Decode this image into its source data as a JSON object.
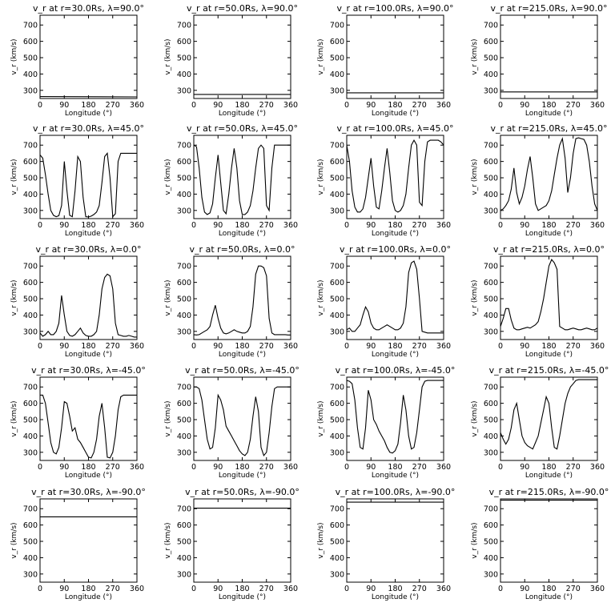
{
  "xlabel": "Longitude (°)",
  "ylabel": "v_r (km/s)",
  "chart_data": [
    {
      "type": "line",
      "title": "v_r at r=30.0Rs, λ=90.0°",
      "xlim": [
        0,
        360
      ],
      "ylim": [
        250,
        760
      ],
      "x": [
        0,
        360
      ],
      "y": [
        262,
        260
      ]
    },
    {
      "type": "line",
      "title": "v_r at r=50.0Rs, λ=90.0°",
      "xlim": [
        0,
        360
      ],
      "ylim": [
        250,
        760
      ],
      "x": [
        0,
        360
      ],
      "y": [
        275,
        275
      ]
    },
    {
      "type": "line",
      "title": "v_r at r=100.0Rs, λ=90.0°",
      "xlim": [
        0,
        360
      ],
      "ylim": [
        250,
        760
      ],
      "x": [
        0,
        360
      ],
      "y": [
        285,
        285
      ]
    },
    {
      "type": "line",
      "title": "v_r at r=215.0Rs, λ=90.0°",
      "xlim": [
        0,
        360
      ],
      "ylim": [
        250,
        760
      ],
      "x": [
        0,
        360
      ],
      "y": [
        290,
        290
      ]
    },
    {
      "type": "line",
      "title": "v_r at r=30.0Rs, λ=45.0°",
      "xlim": [
        0,
        360
      ],
      "ylim": [
        250,
        760
      ],
      "x": [
        0,
        10,
        20,
        30,
        40,
        50,
        60,
        70,
        80,
        90,
        100,
        110,
        120,
        130,
        140,
        150,
        160,
        170,
        180,
        190,
        200,
        210,
        220,
        230,
        240,
        250,
        260,
        270,
        280,
        290,
        300,
        310,
        320,
        330,
        340,
        350,
        360
      ],
      "y": [
        640,
        620,
        520,
        400,
        300,
        270,
        262,
        268,
        330,
        600,
        420,
        270,
        262,
        420,
        630,
        600,
        380,
        262,
        260,
        265,
        275,
        290,
        330,
        470,
        630,
        650,
        500,
        262,
        280,
        600,
        650,
        650,
        650,
        650,
        650,
        650,
        650
      ]
    },
    {
      "type": "line",
      "title": "v_r at r=50.0Rs, λ=45.0°",
      "xlim": [
        0,
        360
      ],
      "ylim": [
        250,
        760
      ],
      "x": [
        0,
        10,
        20,
        30,
        40,
        50,
        60,
        70,
        80,
        90,
        100,
        110,
        120,
        130,
        140,
        150,
        160,
        170,
        180,
        190,
        200,
        210,
        220,
        230,
        240,
        250,
        260,
        270,
        280,
        290,
        300,
        310,
        320,
        330,
        340,
        350,
        360
      ],
      "y": [
        700,
        690,
        560,
        380,
        290,
        275,
        285,
        340,
        500,
        640,
        470,
        300,
        280,
        400,
        560,
        680,
        560,
        360,
        275,
        275,
        290,
        330,
        420,
        560,
        680,
        700,
        680,
        330,
        300,
        560,
        700,
        700,
        700,
        700,
        700,
        700,
        700
      ]
    },
    {
      "type": "line",
      "title": "v_r at r=100.0Rs, λ=45.0°",
      "xlim": [
        0,
        360
      ],
      "ylim": [
        250,
        760
      ],
      "x": [
        0,
        10,
        20,
        30,
        40,
        50,
        60,
        70,
        80,
        90,
        100,
        110,
        120,
        130,
        140,
        150,
        160,
        170,
        180,
        190,
        200,
        210,
        220,
        230,
        240,
        250,
        260,
        270,
        280,
        290,
        300,
        310,
        320,
        330,
        340,
        350,
        360
      ],
      "y": [
        700,
        600,
        420,
        320,
        290,
        290,
        310,
        380,
        500,
        620,
        450,
        320,
        310,
        420,
        560,
        680,
        530,
        360,
        300,
        290,
        300,
        330,
        400,
        560,
        700,
        730,
        700,
        350,
        330,
        600,
        720,
        730,
        730,
        730,
        730,
        720,
        700
      ]
    },
    {
      "type": "line",
      "title": "v_r at r=215.0Rs, λ=45.0°",
      "xlim": [
        0,
        360
      ],
      "ylim": [
        250,
        760
      ],
      "x": [
        0,
        10,
        20,
        30,
        40,
        50,
        60,
        70,
        80,
        90,
        100,
        110,
        120,
        130,
        140,
        150,
        160,
        170,
        180,
        190,
        200,
        210,
        220,
        230,
        240,
        250,
        260,
        270,
        280,
        290,
        300,
        310,
        320,
        330,
        340,
        350,
        360
      ],
      "y": [
        300,
        310,
        330,
        360,
        430,
        560,
        410,
        340,
        380,
        450,
        550,
        630,
        500,
        340,
        300,
        310,
        320,
        330,
        360,
        420,
        520,
        620,
        700,
        740,
        620,
        410,
        500,
        650,
        740,
        745,
        740,
        735,
        700,
        600,
        450,
        340,
        300
      ]
    },
    {
      "type": "line",
      "title": "v_r at r=30.0Rs, λ=0.0°",
      "xlim": [
        0,
        360
      ],
      "ylim": [
        250,
        760
      ],
      "x": [
        0,
        10,
        20,
        30,
        40,
        50,
        60,
        70,
        80,
        90,
        100,
        110,
        120,
        130,
        140,
        150,
        160,
        170,
        180,
        190,
        200,
        210,
        220,
        230,
        240,
        250,
        260,
        270,
        280,
        290,
        300,
        310,
        320,
        330,
        340,
        350,
        360
      ],
      "y": [
        290,
        270,
        280,
        300,
        280,
        280,
        300,
        350,
        520,
        400,
        300,
        275,
        270,
        280,
        300,
        320,
        290,
        275,
        270,
        270,
        280,
        300,
        400,
        560,
        630,
        650,
        640,
        560,
        350,
        280,
        275,
        270,
        270,
        275,
        270,
        265,
        265
      ]
    },
    {
      "type": "line",
      "title": "v_r at r=50.0Rs, λ=0.0°",
      "xlim": [
        0,
        360
      ],
      "ylim": [
        250,
        760
      ],
      "x": [
        0,
        10,
        20,
        30,
        40,
        50,
        60,
        70,
        80,
        90,
        100,
        110,
        120,
        130,
        140,
        150,
        160,
        170,
        180,
        190,
        200,
        210,
        220,
        230,
        240,
        250,
        260,
        270,
        280,
        290,
        300,
        310,
        320,
        330,
        340,
        350,
        360
      ],
      "y": [
        280,
        278,
        280,
        290,
        300,
        310,
        330,
        400,
        460,
        380,
        320,
        290,
        285,
        290,
        300,
        310,
        300,
        295,
        290,
        290,
        300,
        330,
        450,
        650,
        700,
        700,
        690,
        640,
        380,
        290,
        280,
        280,
        280,
        280,
        280,
        278,
        278
      ]
    },
    {
      "type": "line",
      "title": "v_r at r=100.0Rs, λ=0.0°",
      "xlim": [
        0,
        360
      ],
      "ylim": [
        250,
        760
      ],
      "x": [
        0,
        10,
        20,
        30,
        40,
        50,
        60,
        70,
        80,
        90,
        100,
        110,
        120,
        130,
        140,
        150,
        160,
        170,
        180,
        190,
        200,
        210,
        220,
        230,
        240,
        250,
        260,
        270,
        280,
        290,
        300,
        310,
        320,
        330,
        340,
        350,
        360
      ],
      "y": [
        310,
        320,
        300,
        300,
        320,
        340,
        400,
        450,
        420,
        350,
        320,
        310,
        310,
        320,
        330,
        340,
        330,
        320,
        310,
        310,
        320,
        350,
        450,
        660,
        720,
        730,
        680,
        500,
        300,
        295,
        290,
        290,
        290,
        290,
        290,
        290,
        290
      ]
    },
    {
      "type": "line",
      "title": "v_r at r=215.0Rs, λ=0.0°",
      "xlim": [
        0,
        360
      ],
      "ylim": [
        250,
        760
      ],
      "x": [
        0,
        10,
        20,
        30,
        40,
        50,
        60,
        70,
        80,
        90,
        100,
        110,
        120,
        130,
        140,
        150,
        160,
        170,
        180,
        190,
        200,
        210,
        220,
        230,
        240,
        250,
        260,
        270,
        280,
        290,
        300,
        310,
        320,
        330,
        340,
        350,
        360
      ],
      "y": [
        330,
        380,
        440,
        440,
        370,
        320,
        310,
        310,
        315,
        320,
        325,
        320,
        330,
        340,
        360,
        420,
        500,
        600,
        700,
        740,
        720,
        680,
        330,
        320,
        310,
        310,
        315,
        320,
        315,
        310,
        310,
        315,
        320,
        315,
        310,
        310,
        320
      ]
    },
    {
      "type": "line",
      "title": "v_r at r=30.0Rs, λ=-45.0°",
      "xlim": [
        0,
        360
      ],
      "ylim": [
        250,
        760
      ],
      "x": [
        0,
        10,
        20,
        30,
        40,
        50,
        60,
        70,
        80,
        90,
        100,
        110,
        120,
        130,
        140,
        150,
        160,
        170,
        180,
        190,
        200,
        210,
        220,
        230,
        240,
        250,
        260,
        270,
        280,
        290,
        300,
        310,
        320,
        330,
        340,
        350,
        360
      ],
      "y": [
        650,
        650,
        600,
        480,
        360,
        300,
        290,
        330,
        450,
        610,
        600,
        520,
        430,
        450,
        380,
        360,
        330,
        300,
        270,
        265,
        300,
        380,
        520,
        600,
        450,
        270,
        265,
        300,
        400,
        560,
        640,
        650,
        650,
        650,
        650,
        650,
        650
      ]
    },
    {
      "type": "line",
      "title": "v_r at r=50.0Rs, λ=-45.0°",
      "xlim": [
        0,
        360
      ],
      "ylim": [
        250,
        760
      ],
      "x": [
        0,
        10,
        20,
        30,
        40,
        50,
        60,
        70,
        80,
        90,
        100,
        110,
        120,
        130,
        140,
        150,
        160,
        170,
        180,
        190,
        200,
        210,
        220,
        230,
        240,
        250,
        260,
        270,
        280,
        290,
        300,
        310,
        320,
        330,
        340,
        350,
        360
      ],
      "y": [
        700,
        700,
        690,
        620,
        500,
        380,
        320,
        330,
        450,
        650,
        620,
        560,
        460,
        430,
        400,
        370,
        340,
        310,
        290,
        280,
        300,
        380,
        520,
        640,
        550,
        330,
        280,
        300,
        420,
        580,
        690,
        700,
        700,
        700,
        700,
        700,
        700
      ]
    },
    {
      "type": "line",
      "title": "v_r at r=100.0Rs, λ=-45.0°",
      "xlim": [
        0,
        360
      ],
      "ylim": [
        250,
        760
      ],
      "x": [
        0,
        10,
        20,
        30,
        40,
        50,
        60,
        70,
        80,
        90,
        100,
        110,
        120,
        130,
        140,
        150,
        160,
        170,
        180,
        190,
        200,
        210,
        220,
        230,
        240,
        250,
        260,
        270,
        280,
        290,
        300,
        310,
        320,
        330,
        340,
        350,
        360
      ],
      "y": [
        740,
        735,
        720,
        620,
        450,
        330,
        320,
        450,
        680,
        620,
        500,
        470,
        430,
        400,
        370,
        330,
        300,
        295,
        310,
        350,
        480,
        650,
        560,
        400,
        320,
        330,
        420,
        560,
        700,
        735,
        740,
        740,
        740,
        740,
        740,
        740,
        740
      ]
    },
    {
      "type": "line",
      "title": "v_r at r=215.0Rs, λ=-45.0°",
      "xlim": [
        0,
        360
      ],
      "ylim": [
        250,
        760
      ],
      "x": [
        0,
        10,
        20,
        30,
        40,
        50,
        60,
        70,
        80,
        90,
        100,
        110,
        120,
        130,
        140,
        150,
        160,
        170,
        180,
        190,
        200,
        210,
        220,
        230,
        240,
        250,
        260,
        270,
        280,
        290,
        300,
        310,
        320,
        330,
        340,
        350,
        360
      ],
      "y": [
        420,
        380,
        350,
        380,
        450,
        560,
        600,
        500,
        400,
        360,
        340,
        330,
        320,
        360,
        400,
        480,
        560,
        640,
        600,
        450,
        330,
        320,
        400,
        500,
        600,
        660,
        700,
        720,
        740,
        745,
        745,
        745,
        745,
        745,
        745,
        745,
        745
      ]
    },
    {
      "type": "line",
      "title": "v_r at r=30.0Rs, λ=-90.0°",
      "xlim": [
        0,
        360
      ],
      "ylim": [
        250,
        760
      ],
      "x": [
        0,
        360
      ],
      "y": [
        650,
        650
      ]
    },
    {
      "type": "line",
      "title": "v_r at r=50.0Rs, λ=-90.0°",
      "xlim": [
        0,
        360
      ],
      "ylim": [
        250,
        760
      ],
      "x": [
        0,
        360
      ],
      "y": [
        703,
        703
      ]
    },
    {
      "type": "line",
      "title": "v_r at r=100.0Rs, λ=-90.0°",
      "xlim": [
        0,
        360
      ],
      "ylim": [
        250,
        760
      ],
      "x": [
        0,
        360
      ],
      "y": [
        740,
        740
      ]
    },
    {
      "type": "line",
      "title": "v_r at r=215.0Rs, λ=-90.0°",
      "xlim": [
        0,
        360
      ],
      "ylim": [
        250,
        760
      ],
      "x": [
        0,
        360
      ],
      "y": [
        752,
        752
      ]
    }
  ],
  "xticks": [
    0,
    90,
    180,
    270,
    360
  ],
  "yticks": [
    300,
    400,
    500,
    600,
    700
  ]
}
